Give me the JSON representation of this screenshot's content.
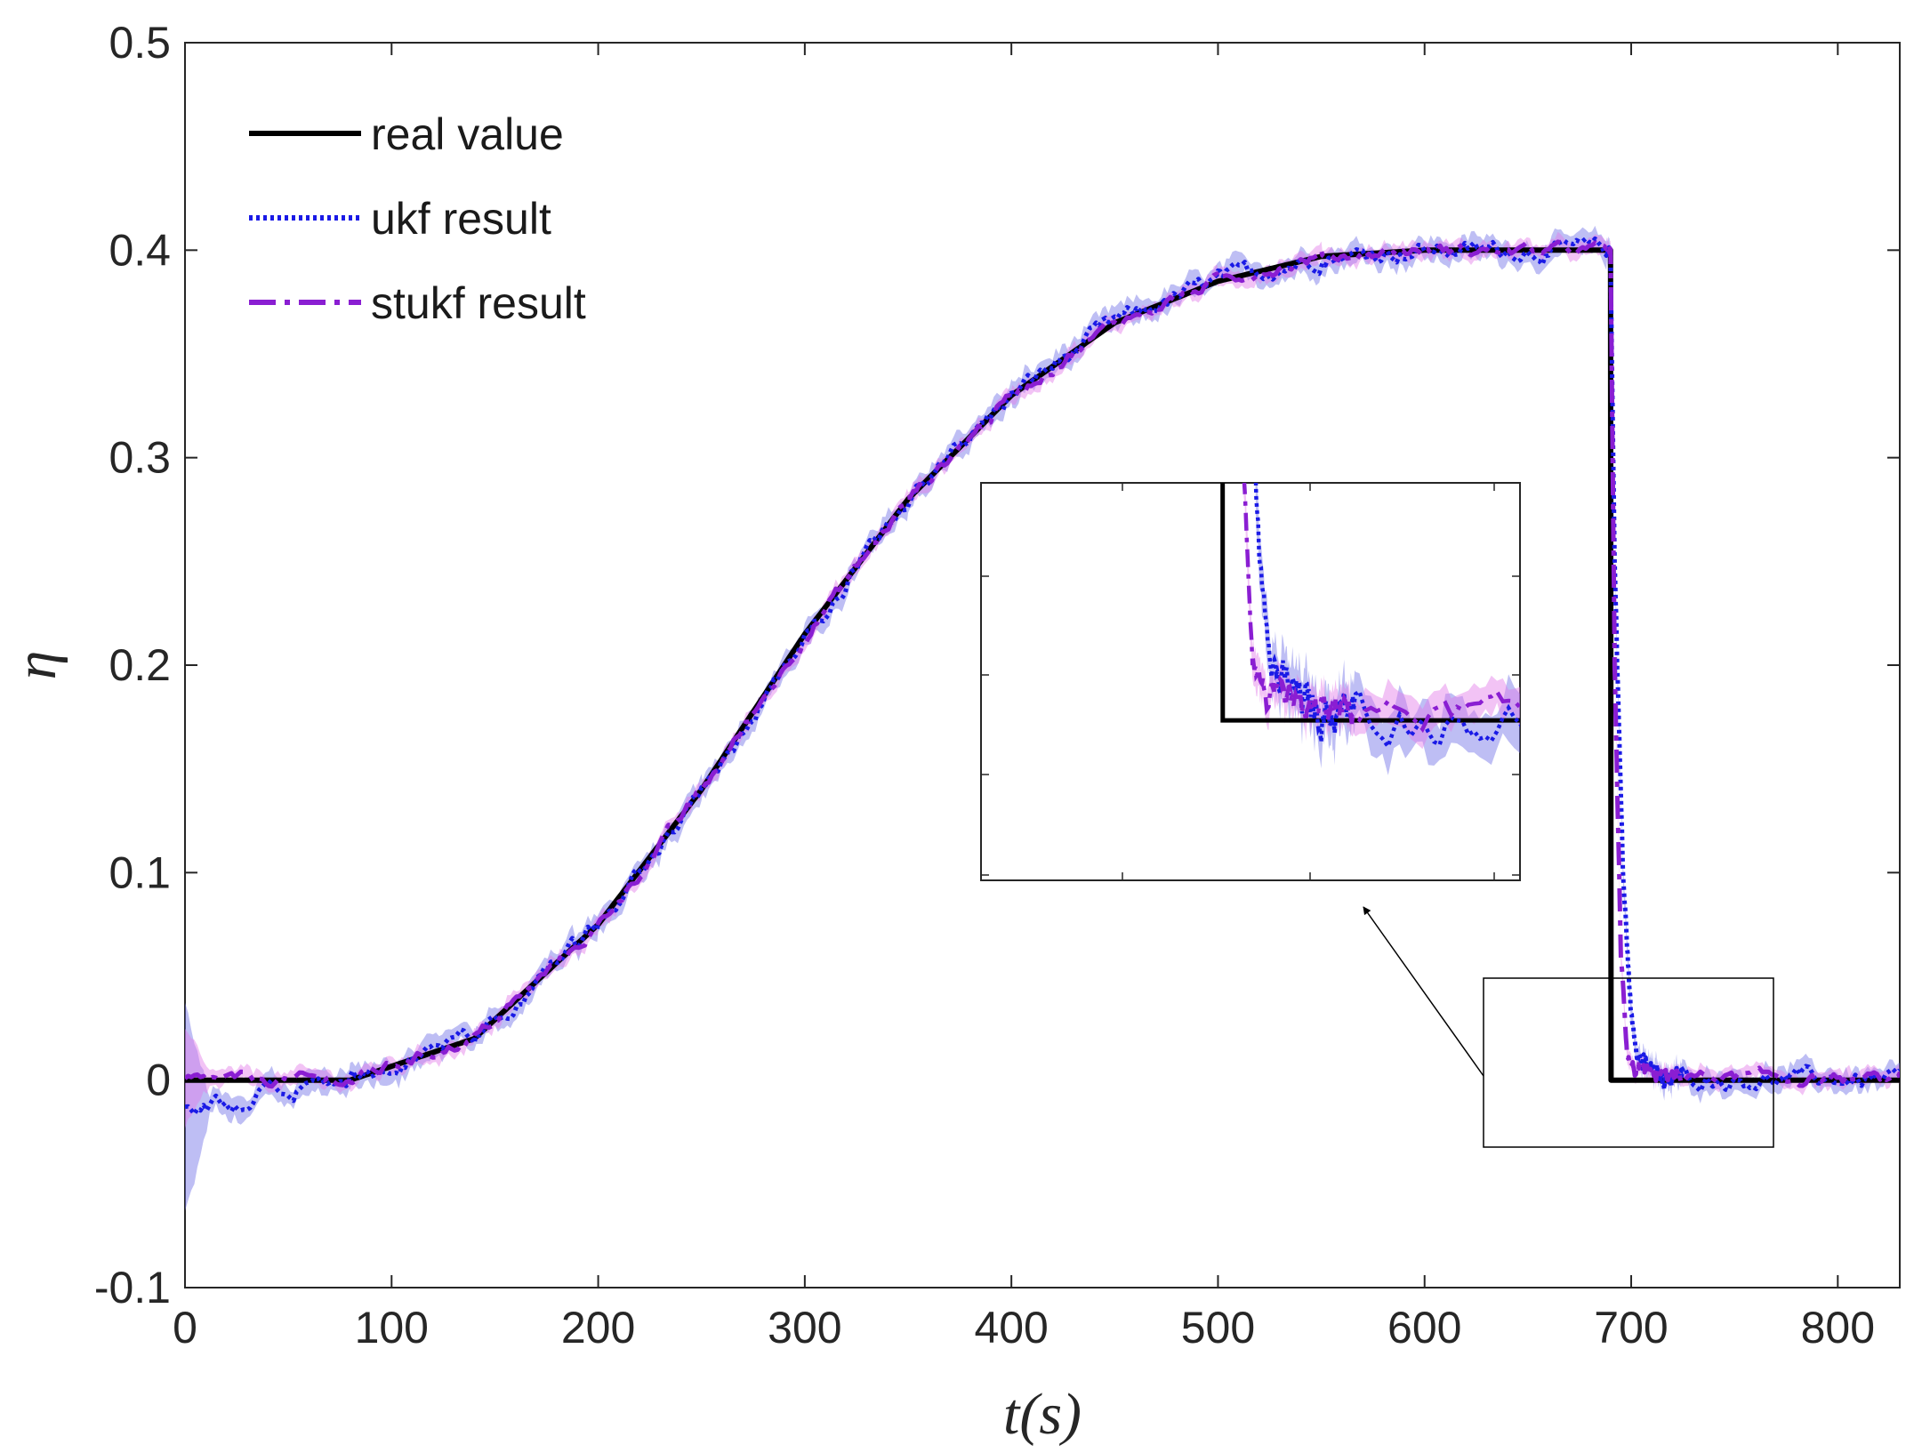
{
  "chart_data": {
    "type": "line",
    "title": "",
    "xlabel": "t(s)",
    "ylabel": "η",
    "xlim": [
      0,
      830
    ],
    "ylim": [
      -0.1,
      0.5
    ],
    "xticks": [
      "0",
      "100",
      "200",
      "300",
      "400",
      "500",
      "600",
      "700",
      "800"
    ],
    "yticks": [
      "-0.1",
      "0",
      "0.1",
      "0.2",
      "0.3",
      "0.4",
      "0.5"
    ],
    "legend_position": "top-left",
    "series": [
      {
        "name": "real value",
        "style": "solid",
        "color": "#000000",
        "x": [
          0,
          80,
          140,
          200,
          250,
          300,
          350,
          400,
          450,
          500,
          550,
          600,
          690,
          690,
          830
        ],
        "y": [
          0,
          0,
          0.02,
          0.075,
          0.14,
          0.215,
          0.28,
          0.33,
          0.365,
          0.385,
          0.397,
          0.4,
          0.4,
          0,
          0
        ]
      },
      {
        "name": "ukf result",
        "style": "dotted",
        "color": "#1a1ae6",
        "x": [
          0,
          80,
          140,
          200,
          250,
          300,
          350,
          400,
          450,
          500,
          550,
          600,
          690,
          692,
          696,
          700,
          705,
          712,
          720,
          830
        ],
        "y": [
          -0.015,
          0.001,
          0.02,
          0.073,
          0.138,
          0.213,
          0.279,
          0.33,
          0.365,
          0.385,
          0.397,
          0.4,
          0.4,
          0.25,
          0.1,
          0.03,
          0.008,
          0.003,
          0.001,
          0
        ]
      },
      {
        "name": "stukf result",
        "style": "dash-dot",
        "color": "#8a1ed2",
        "x": [
          0,
          80,
          140,
          200,
          250,
          300,
          350,
          400,
          450,
          500,
          550,
          600,
          690,
          692,
          695,
          698,
          702,
          710,
          830
        ],
        "y": [
          0,
          0,
          0.02,
          0.074,
          0.139,
          0.214,
          0.28,
          0.33,
          0.365,
          0.385,
          0.397,
          0.4,
          0.4,
          0.2,
          0.06,
          0.015,
          0.004,
          0.002,
          0
        ]
      }
    ],
    "inset": {
      "zoom_region": {
        "x": [
          627,
          768
        ],
        "y": [
          -0.033,
          0.049
        ]
      },
      "note": "magnified view of the drop after t = 690 s"
    }
  }
}
